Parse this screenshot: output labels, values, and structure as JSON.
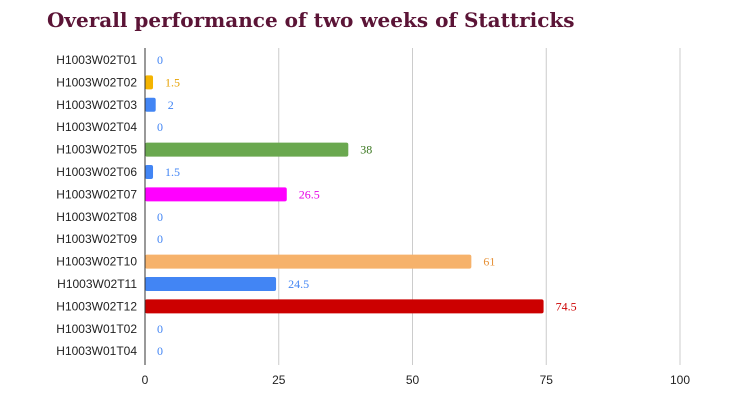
{
  "chart_data": {
    "type": "bar",
    "orientation": "horizontal",
    "title": "Overall performance of two weeks of Stattricks",
    "xlabel": "",
    "ylabel": "",
    "xlim": [
      0,
      100
    ],
    "ticks": [
      0,
      25,
      50,
      75,
      100
    ],
    "grid": true,
    "categories": [
      "H1003W02T01",
      "H1003W02T02",
      "H1003W02T03",
      "H1003W02T04",
      "H1003W02T05",
      "H1003W02T06",
      "H1003W02T07",
      "H1003W02T08",
      "H1003W02T09",
      "H1003W02T10",
      "H1003W02T11",
      "H1003W02T12",
      "H1003W01T02",
      "H1003W01T04"
    ],
    "values": [
      0,
      1.5,
      2,
      0,
      38,
      1.5,
      26.5,
      0,
      0,
      61,
      24.5,
      74.5,
      0,
      0
    ],
    "value_labels": [
      "0",
      "1.5",
      "2",
      "0",
      "38",
      "1.5",
      "26.5",
      "0",
      "0",
      "61",
      "24.5",
      "74.5",
      "0",
      "0"
    ],
    "colors": [
      "#4285f4",
      "#f4b400",
      "#4285f4",
      "#4285f4",
      "#6aa84f",
      "#4285f4",
      "#ff00ff",
      "#4285f4",
      "#4285f4",
      "#f6b26b",
      "#4285f4",
      "#cc0000",
      "#4285f4",
      "#4285f4"
    ],
    "label_colors": [
      "#4285f4",
      "#e6a100",
      "#4285f4",
      "#4285f4",
      "#38761d",
      "#4285f4",
      "#e600e6",
      "#4285f4",
      "#4285f4",
      "#e69138",
      "#4285f4",
      "#cc0000",
      "#4285f4",
      "#4285f4"
    ]
  }
}
